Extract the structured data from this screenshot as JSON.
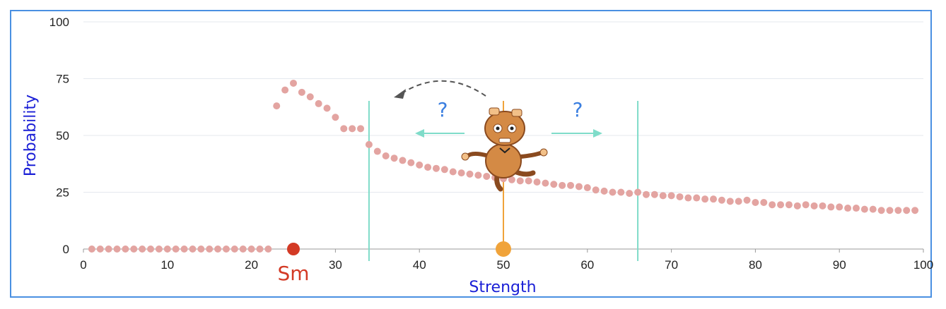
{
  "chart_data": {
    "type": "scatter",
    "xlabel": "Strength",
    "ylabel": "Probability",
    "xlim": [
      0,
      100
    ],
    "ylim": [
      0,
      100
    ],
    "x_ticks": [
      0,
      10,
      20,
      30,
      40,
      50,
      60,
      70,
      80,
      90,
      100
    ],
    "y_ticks": [
      0,
      25,
      50,
      75,
      100
    ],
    "grid": "horizontal",
    "series": [
      {
        "color": "#e3a4a1",
        "points": [
          [
            1,
            0
          ],
          [
            2,
            0
          ],
          [
            3,
            0
          ],
          [
            4,
            0
          ],
          [
            5,
            0
          ],
          [
            6,
            0
          ],
          [
            7,
            0
          ],
          [
            8,
            0
          ],
          [
            9,
            0
          ],
          [
            10,
            0
          ],
          [
            11,
            0
          ],
          [
            12,
            0
          ],
          [
            13,
            0
          ],
          [
            14,
            0
          ],
          [
            15,
            0
          ],
          [
            16,
            0
          ],
          [
            17,
            0
          ],
          [
            18,
            0
          ],
          [
            19,
            0
          ],
          [
            20,
            0
          ],
          [
            21,
            0
          ],
          [
            22,
            0
          ],
          [
            23,
            63
          ],
          [
            24,
            70
          ],
          [
            25,
            73
          ],
          [
            26,
            69
          ],
          [
            27,
            67
          ],
          [
            28,
            64
          ],
          [
            29,
            62
          ],
          [
            30,
            58
          ],
          [
            31,
            53
          ],
          [
            32,
            53
          ],
          [
            33,
            53
          ],
          [
            34,
            46
          ],
          [
            35,
            43
          ],
          [
            36,
            41
          ],
          [
            37,
            40
          ],
          [
            38,
            39
          ],
          [
            39,
            38
          ],
          [
            40,
            37
          ],
          [
            41,
            36
          ],
          [
            42,
            35.5
          ],
          [
            43,
            35
          ],
          [
            44,
            34
          ],
          [
            45,
            33.5
          ],
          [
            46,
            33
          ],
          [
            47,
            32.5
          ],
          [
            48,
            32
          ],
          [
            49,
            31.5
          ],
          [
            50,
            31
          ],
          [
            51,
            30.5
          ],
          [
            52,
            30
          ],
          [
            53,
            30
          ],
          [
            54,
            29.5
          ],
          [
            55,
            29
          ],
          [
            56,
            28.5
          ],
          [
            57,
            28
          ],
          [
            58,
            28
          ],
          [
            59,
            27.5
          ],
          [
            60,
            27
          ],
          [
            61,
            26
          ],
          [
            62,
            25.5
          ],
          [
            63,
            25
          ],
          [
            64,
            25
          ],
          [
            65,
            24.5
          ],
          [
            66,
            25
          ],
          [
            67,
            24
          ],
          [
            68,
            24
          ],
          [
            69,
            23.5
          ],
          [
            70,
            23.5
          ],
          [
            71,
            23
          ],
          [
            72,
            22.5
          ],
          [
            73,
            22.5
          ],
          [
            74,
            22
          ],
          [
            75,
            22
          ],
          [
            76,
            21.5
          ],
          [
            77,
            21
          ],
          [
            78,
            21
          ],
          [
            79,
            21.5
          ],
          [
            80,
            20.5
          ],
          [
            81,
            20.5
          ],
          [
            82,
            19.5
          ],
          [
            83,
            19.5
          ],
          [
            84,
            19.5
          ],
          [
            85,
            19
          ],
          [
            86,
            19.5
          ],
          [
            87,
            19
          ],
          [
            88,
            19
          ],
          [
            89,
            18.5
          ],
          [
            90,
            18.5
          ],
          [
            91,
            18
          ],
          [
            92,
            18
          ],
          [
            93,
            17.5
          ],
          [
            94,
            17.5
          ],
          [
            95,
            17
          ],
          [
            96,
            17
          ],
          [
            97,
            17
          ],
          [
            98,
            17
          ],
          [
            99,
            17
          ]
        ]
      }
    ],
    "annotations": {
      "sm_marker": {
        "x": 25,
        "y": 0,
        "label": "Sm",
        "color": "#d33a25"
      },
      "current_marker": {
        "x": 50,
        "y": 0,
        "color": "#f0a33a"
      },
      "vertical_lines": [
        {
          "x": 34,
          "color": "#7fdcc9"
        },
        {
          "x": 66,
          "color": "#7fdcc9"
        }
      ],
      "center_line": {
        "x": 50,
        "color": "#f0a33a"
      },
      "question_marks": [
        "?",
        "?"
      ],
      "arrow_color": "#7fdcc9",
      "curved_arrow_color": "#555555"
    }
  }
}
